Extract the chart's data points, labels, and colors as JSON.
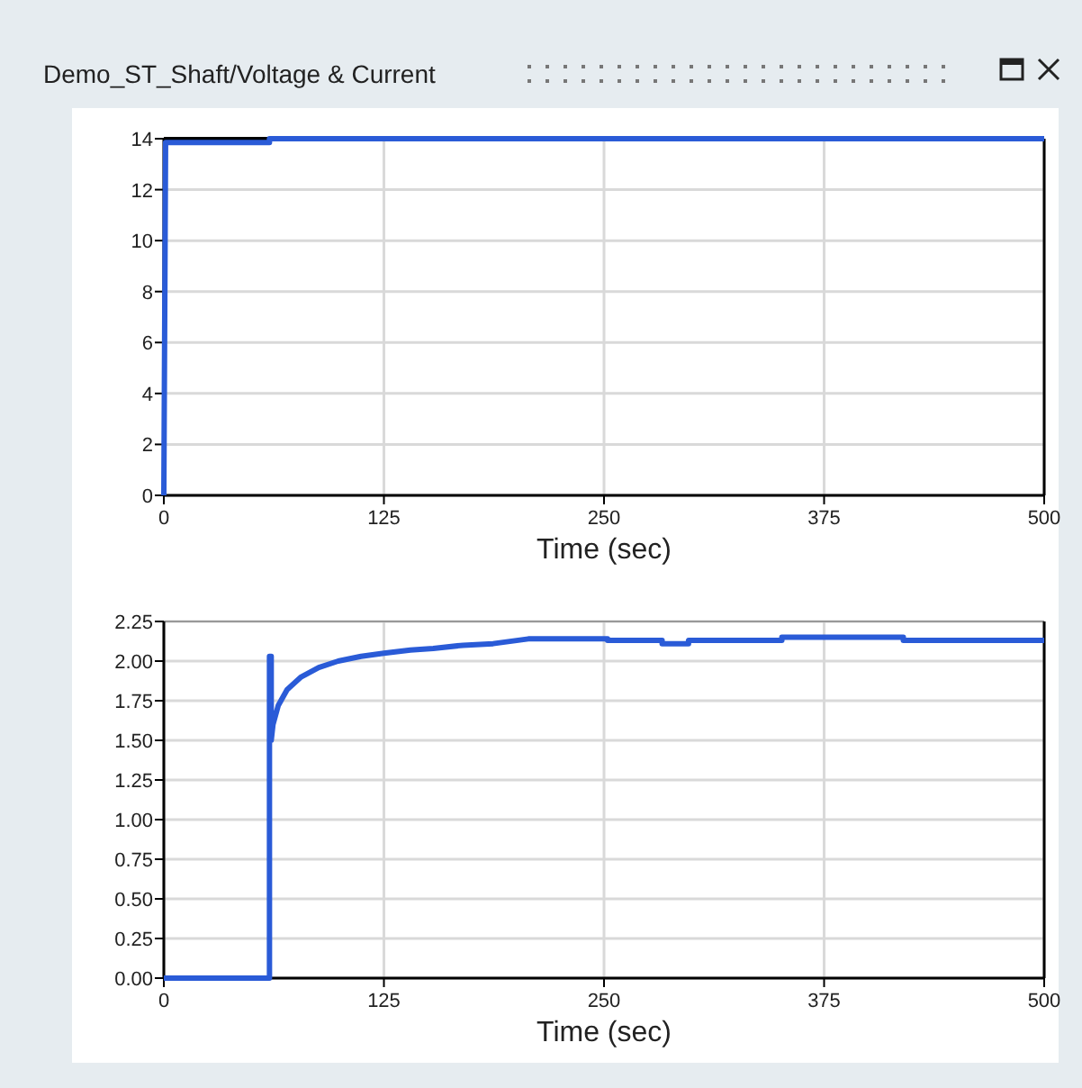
{
  "chart_data": [
    {
      "type": "line",
      "title": "Demo_ST_Shaft/Voltage & Current",
      "xlabel": "Time (sec)",
      "xlim": [
        0,
        500
      ],
      "xticks": [
        0,
        125,
        250,
        375,
        500
      ],
      "ylim": [
        0,
        14
      ],
      "yticks": [
        0,
        2,
        4,
        6,
        8,
        10,
        12,
        14
      ],
      "grid": true,
      "series": [
        {
          "color": "#000000",
          "x": [
            0,
            59
          ],
          "values": [
            14,
            14
          ]
        },
        {
          "color": "#2a5bd7",
          "x": [
            0,
            1,
            60,
            60,
            500
          ],
          "values": [
            0,
            13.85,
            13.85,
            14,
            14
          ]
        }
      ]
    },
    {
      "type": "line",
      "xlabel": "Time (sec)",
      "xlim": [
        0,
        500
      ],
      "xticks": [
        0,
        125,
        250,
        375,
        500
      ],
      "ylim": [
        0,
        2.25
      ],
      "yticks": [
        {
          "value": 0,
          "label": "0.00"
        },
        {
          "value": 0.25,
          "label": "0.25"
        },
        {
          "value": 0.5,
          "label": "0.50"
        },
        {
          "value": 0.75,
          "label": "0.75"
        },
        {
          "value": 1,
          "label": "1.00"
        },
        {
          "value": 1.25,
          "label": "1.25"
        },
        {
          "value": 1.5,
          "label": "1.50"
        },
        {
          "value": 1.75,
          "label": "1.75"
        },
        {
          "value": 2,
          "label": "2.00"
        },
        {
          "value": 2.25,
          "label": "2.25"
        }
      ],
      "grid": true,
      "series": [
        {
          "color": "#2a5bd7",
          "x": [
            0,
            60,
            60,
            61,
            61,
            62,
            65,
            70,
            78,
            88,
            99,
            112,
            125,
            140,
            153,
            170,
            187,
            207,
            230,
            252,
            252,
            283,
            283,
            298,
            298,
            351,
            351,
            420,
            420,
            500
          ],
          "values": [
            0,
            0,
            2.03,
            2.03,
            1.5,
            1.6,
            1.72,
            1.82,
            1.9,
            1.96,
            2.0,
            2.03,
            2.05,
            2.07,
            2.08,
            2.1,
            2.11,
            2.14,
            2.14,
            2.14,
            2.13,
            2.13,
            2.11,
            2.11,
            2.13,
            2.13,
            2.15,
            2.15,
            2.13,
            2.13
          ]
        }
      ]
    }
  ]
}
